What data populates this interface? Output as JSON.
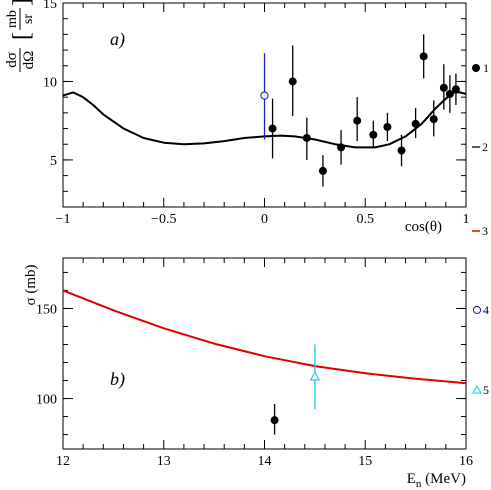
{
  "chart_data": [
    {
      "type": "scatter",
      "panel_label": "a)",
      "xlabel": "cos(θ)",
      "ylabel_num": "dσ",
      "ylabel_den": "dΩ",
      "yunit_num": "mb",
      "yunit_den": "sr",
      "xlim": [
        -1,
        1
      ],
      "ylim": [
        2,
        15
      ],
      "xticks": [
        -1,
        -0.5,
        0,
        0.5,
        1
      ],
      "xtick_labels": [
        "−1",
        "−0.5",
        "0",
        "0.5",
        "1"
      ],
      "yticks": [
        5,
        10,
        15
      ],
      "ytick_labels": [
        "5",
        "10",
        "15"
      ],
      "series": [
        {
          "legend_label": "1",
          "marker": "filled-circle",
          "color": "#000000",
          "points": [
            {
              "x": 0.04,
              "y": 7.0,
              "lo": 5.1,
              "hi": 8.9
            },
            {
              "x": 0.14,
              "y": 10.0,
              "lo": 7.8,
              "hi": 12.3
            },
            {
              "x": 0.21,
              "y": 6.4,
              "lo": 5.0,
              "hi": 7.7
            },
            {
              "x": 0.29,
              "y": 4.3,
              "lo": 3.3,
              "hi": 5.3
            },
            {
              "x": 0.38,
              "y": 5.8,
              "lo": 4.7,
              "hi": 6.9
            },
            {
              "x": 0.46,
              "y": 7.5,
              "lo": 6.2,
              "hi": 9.0
            },
            {
              "x": 0.54,
              "y": 6.6,
              "lo": 5.8,
              "hi": 7.5
            },
            {
              "x": 0.61,
              "y": 7.1,
              "lo": 6.2,
              "hi": 8.0
            },
            {
              "x": 0.68,
              "y": 5.6,
              "lo": 4.6,
              "hi": 6.6
            },
            {
              "x": 0.75,
              "y": 7.3,
              "lo": 6.4,
              "hi": 8.3
            },
            {
              "x": 0.79,
              "y": 11.6,
              "lo": 10.2,
              "hi": 13.0
            },
            {
              "x": 0.84,
              "y": 7.6,
              "lo": 6.5,
              "hi": 8.8
            },
            {
              "x": 0.89,
              "y": 9.6,
              "lo": 8.2,
              "hi": 11.1
            },
            {
              "x": 0.92,
              "y": 9.2,
              "lo": 8.0,
              "hi": 10.4
            },
            {
              "x": 0.95,
              "y": 9.5,
              "lo": 8.5,
              "hi": 10.5
            }
          ]
        },
        {
          "legend_label": "2",
          "style": "solid-line",
          "color": "#000000",
          "curve": [
            [
              -1.0,
              9.1
            ],
            [
              -0.95,
              9.3
            ],
            [
              -0.9,
              9.0
            ],
            [
              -0.85,
              8.5
            ],
            [
              -0.8,
              7.9
            ],
            [
              -0.7,
              7.0
            ],
            [
              -0.6,
              6.4
            ],
            [
              -0.5,
              6.1
            ],
            [
              -0.4,
              6.0
            ],
            [
              -0.3,
              6.05
            ],
            [
              -0.2,
              6.2
            ],
            [
              -0.1,
              6.4
            ],
            [
              0.0,
              6.5
            ],
            [
              0.08,
              6.55
            ],
            [
              0.15,
              6.5
            ],
            [
              0.25,
              6.3
            ],
            [
              0.35,
              6.0
            ],
            [
              0.45,
              5.8
            ],
            [
              0.55,
              5.8
            ],
            [
              0.62,
              6.0
            ],
            [
              0.7,
              6.5
            ],
            [
              0.78,
              7.3
            ],
            [
              0.85,
              8.3
            ],
            [
              0.9,
              8.9
            ],
            [
              0.94,
              9.3
            ],
            [
              0.97,
              9.3
            ],
            [
              1.0,
              9.2
            ]
          ]
        },
        {
          "legend_label": "",
          "marker": "open-circle",
          "color": "#1f1fcc",
          "points": [
            {
              "x": 0.0,
              "y": 9.1,
              "lo": 6.3,
              "hi": 11.8
            }
          ]
        }
      ]
    },
    {
      "type": "scatter",
      "panel_label": "b)",
      "xlabel": "E",
      "xlabel_sub": "n",
      "xlabel_unit": " (MeV)",
      "ylabel": "σ (mb)",
      "xlim": [
        12,
        16
      ],
      "ylim": [
        72,
        178
      ],
      "xticks": [
        12,
        13,
        14,
        15,
        16
      ],
      "xtick_labels": [
        "12",
        "13",
        "14",
        "15",
        "16"
      ],
      "yticks": [
        100,
        150
      ],
      "ytick_labels": [
        "100",
        "150"
      ],
      "series": [
        {
          "legend_label": "3",
          "style": "solid-line",
          "color": "#e00000",
          "curve": [
            [
              12.0,
              160.0
            ],
            [
              12.5,
              149.0
            ],
            [
              13.0,
              139.0
            ],
            [
              13.5,
              130.5
            ],
            [
              14.0,
              123.5
            ],
            [
              14.5,
              118.0
            ],
            [
              15.0,
              114.0
            ],
            [
              15.5,
              111.0
            ],
            [
              16.0,
              108.5
            ]
          ]
        },
        {
          "legend_label": "4",
          "marker": "open-circle",
          "color": "#1f1fcc",
          "points": []
        },
        {
          "legend_label": "5",
          "marker": "open-triangle",
          "color": "#22c8d8",
          "points": [
            {
              "x": 14.5,
              "y": 112.0,
              "lo": 94.0,
              "hi": 130.0
            }
          ]
        },
        {
          "legend_label": "",
          "marker": "filled-circle",
          "color": "#000000",
          "points": [
            {
              "x": 14.1,
              "y": 88.0,
              "lo": 80.0,
              "hi": 97.0
            }
          ]
        }
      ]
    }
  ]
}
